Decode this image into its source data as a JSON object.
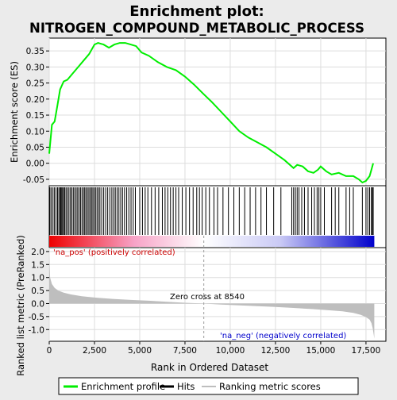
{
  "chart_data": {
    "type": "line",
    "title_line1": "Enrichment plot:",
    "title_line2": "NITROGEN_COMPOUND_METABOLIC_PROCESS",
    "top_panel": {
      "ylabel": "Enrichment score (ES)",
      "ylim": [
        -0.07,
        0.39
      ],
      "yticks": [
        -0.05,
        0.0,
        0.05,
        0.1,
        0.15,
        0.2,
        0.25,
        0.3,
        0.35
      ],
      "ytick_labels": [
        "-0.05",
        "0.00",
        "0.05",
        "0.10",
        "0.15",
        "0.20",
        "0.25",
        "0.30",
        "0.35"
      ],
      "series_name": "Enrichment profile",
      "line_color": "#00ee00",
      "es_curve": {
        "x": [
          0,
          150,
          300,
          450,
          600,
          800,
          1000,
          1300,
          1600,
          1900,
          2200,
          2500,
          2700,
          3000,
          3300,
          3600,
          3900,
          4200,
          4500,
          4800,
          5100,
          5500,
          6000,
          6500,
          7000,
          7500,
          8000,
          8540,
          9000,
          9500,
          10000,
          10500,
          11000,
          11500,
          12000,
          12500,
          13000,
          13500,
          13700,
          14000,
          14300,
          14600,
          14850,
          15000,
          15300,
          15600,
          16000,
          16400,
          16800,
          17100,
          17300,
          17500,
          17700,
          17800,
          17900
        ],
        "y": [
          0.03,
          0.12,
          0.13,
          0.18,
          0.23,
          0.255,
          0.26,
          0.28,
          0.3,
          0.32,
          0.34,
          0.37,
          0.375,
          0.37,
          0.36,
          0.37,
          0.375,
          0.375,
          0.37,
          0.365,
          0.345,
          0.335,
          0.315,
          0.3,
          0.29,
          0.27,
          0.245,
          0.215,
          0.19,
          0.16,
          0.13,
          0.1,
          0.08,
          0.065,
          0.05,
          0.03,
          0.01,
          -0.015,
          -0.005,
          -0.01,
          -0.025,
          -0.03,
          -0.02,
          -0.01,
          -0.025,
          -0.035,
          -0.03,
          -0.04,
          -0.04,
          -0.05,
          -0.06,
          -0.055,
          -0.04,
          -0.02,
          0.0
        ]
      }
    },
    "hits_panel": {
      "series_name": "Hits",
      "hit_positions": [
        40,
        120,
        210,
        290,
        380,
        460,
        530,
        600,
        640,
        690,
        740,
        800,
        860,
        930,
        1010,
        1090,
        1170,
        1250,
        1330,
        1410,
        1490,
        1570,
        1650,
        1730,
        1810,
        1890,
        1960,
        2030,
        2110,
        2190,
        2260,
        2340,
        2410,
        2480,
        2560,
        2640,
        2720,
        2800,
        2900,
        3010,
        3120,
        3230,
        3350,
        3460,
        3560,
        3650,
        3750,
        3850,
        3950,
        4050,
        4160,
        4280,
        4400,
        4520,
        4640,
        4760,
        5000,
        5150,
        5300,
        5450,
        5650,
        5850,
        6050,
        6250,
        6400,
        6550,
        6700,
        6850,
        7000,
        7150,
        7350,
        7550,
        7750,
        7950,
        8150,
        8300,
        8450,
        8650,
        8850,
        9100,
        9300,
        9600,
        9900,
        10200,
        10500,
        10800,
        11100,
        11400,
        11700,
        12000,
        12400,
        12800,
        13400,
        13500,
        13600,
        13700,
        13800,
        13950,
        14100,
        14300,
        14500,
        14650,
        14800,
        14900,
        15000,
        15200,
        15600,
        15800,
        16000,
        16400,
        16600,
        16800,
        17300,
        17500,
        17600,
        17700,
        17800,
        17850,
        17900
      ]
    },
    "rank_bar": {
      "left_color": "#ee0000",
      "right_color": "#0000cc",
      "zero_cross_rank": 8540
    },
    "metric_panel": {
      "ylabel": "Ranked list metric (PreRanked)",
      "ylim": [
        -1.45,
        2.15
      ],
      "yticks": [
        -1.0,
        -0.5,
        0.0,
        0.5,
        1.0,
        1.5,
        2.0
      ],
      "ytick_labels": [
        "-1.0",
        "-0.5",
        "0.0",
        "0.5",
        "1.0",
        "1.5",
        "2.0"
      ],
      "series_name": "Ranking metric scores",
      "fill_color": "#bebebe",
      "metric_curve": {
        "x": [
          0,
          50,
          150,
          300,
          500,
          800,
          1200,
          1800,
          2500,
          3500,
          4500,
          5500,
          6500,
          7500,
          8540,
          9500,
          10500,
          11500,
          12500,
          13500,
          14500,
          15500,
          16200,
          16800,
          17200,
          17500,
          17700,
          17800,
          17870,
          17930,
          17960
        ],
        "y": [
          1.85,
          1.0,
          0.75,
          0.6,
          0.5,
          0.42,
          0.35,
          0.28,
          0.23,
          0.18,
          0.14,
          0.11,
          0.07,
          0.03,
          0.0,
          -0.04,
          -0.07,
          -0.1,
          -0.13,
          -0.17,
          -0.21,
          -0.26,
          -0.3,
          -0.36,
          -0.43,
          -0.52,
          -0.62,
          -0.75,
          -0.95,
          -1.2,
          -1.35
        ]
      },
      "pos_label": "'na_pos' (positively correlated)",
      "neg_label": "'na_neg' (negatively correlated)",
      "pos_label_color": "#cc0000",
      "neg_label_color": "#0000cc",
      "zero_cross_label": "Zero cross at 8540"
    },
    "xaxis": {
      "label": "Rank in Ordered Dataset",
      "xlim": [
        0,
        18600
      ],
      "xticks": [
        0,
        2500,
        5000,
        7500,
        10000,
        12500,
        15000,
        17500
      ],
      "xtick_labels": [
        "0",
        "2,500",
        "5,000",
        "7,500",
        "10,000",
        "12,500",
        "15,000",
        "17,500"
      ]
    },
    "legend": {
      "placement": "bottom",
      "entries": [
        {
          "label": "Enrichment profile",
          "color": "#00ee00"
        },
        {
          "label": "Hits",
          "color": "#000000"
        },
        {
          "label": "Ranking metric scores",
          "color": "#bebebe"
        }
      ]
    }
  }
}
